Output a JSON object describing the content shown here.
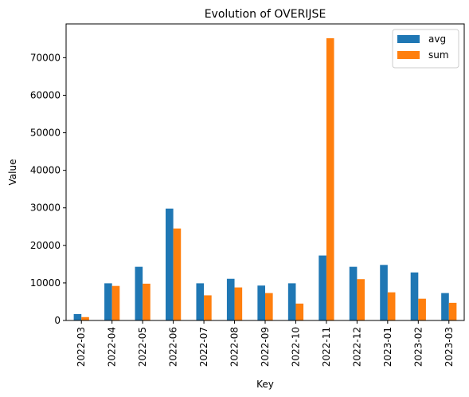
{
  "chart_data": {
    "type": "bar",
    "title": "Evolution of OVERIJSE",
    "xlabel": "Key",
    "ylabel": "Value",
    "categories": [
      "2022-03",
      "2022-04",
      "2022-05",
      "2022-06",
      "2022-07",
      "2022-08",
      "2022-09",
      "2022-10",
      "2022-11",
      "2022-12",
      "2023-01",
      "2023-02",
      "2023-03"
    ],
    "series": [
      {
        "name": "avg",
        "color": "#1f77b4",
        "values": [
          1700,
          9900,
          14300,
          29800,
          9900,
          11100,
          9300,
          9900,
          17300,
          14300,
          14800,
          12800,
          7300
        ]
      },
      {
        "name": "sum",
        "color": "#ff7f0e",
        "values": [
          900,
          9200,
          9800,
          24500,
          6700,
          8800,
          7300,
          4500,
          75200,
          11000,
          7500,
          5800,
          4700
        ]
      }
    ],
    "ylim": [
      0,
      79000
    ],
    "yticks": [
      0,
      10000,
      20000,
      30000,
      40000,
      50000,
      60000,
      70000
    ],
    "ytick_labels": [
      "0",
      "10000",
      "20000",
      "30000",
      "40000",
      "50000",
      "60000",
      "70000"
    ],
    "grid": false,
    "legend_position": "top-right"
  }
}
